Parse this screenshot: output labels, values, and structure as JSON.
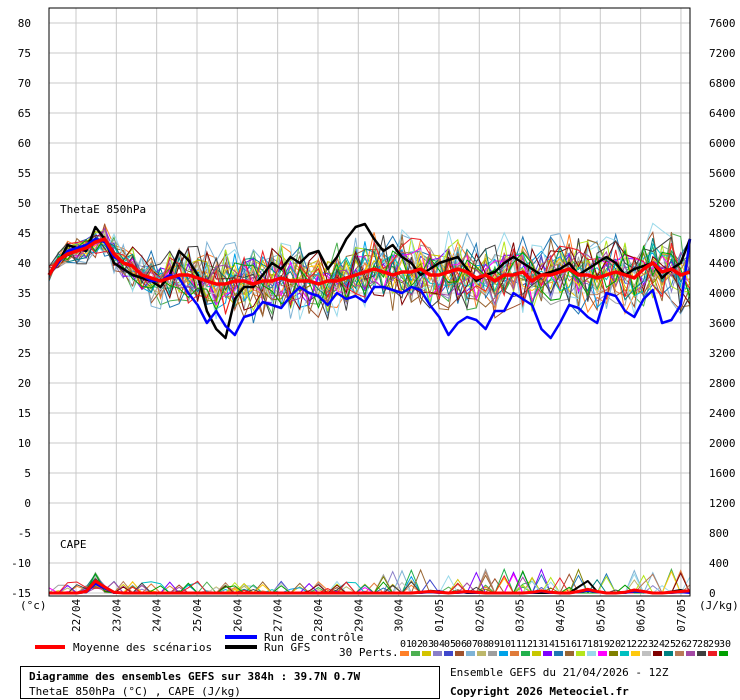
{
  "chart_data": {
    "type": "line",
    "title": "Diagramme des ensembles GEFS sur 384h : 39.7N 0.7W",
    "subtitle": "ThetaE 850hPa (°C) , CAPE (J/kg)",
    "ensemble_info": "Ensemble GEFS du 21/04/2026 - 12Z",
    "copyright": "Copyright 2026 Meteociel.fr",
    "panel_labels": {
      "thetae": "ThetaE 850hPa",
      "cape": "CAPE"
    },
    "left_axis": {
      "unit": "(°c)",
      "ticks": [
        80,
        75,
        70,
        65,
        60,
        55,
        50,
        45,
        40,
        35,
        30,
        25,
        20,
        15,
        10,
        5,
        0,
        -5,
        -10,
        -15
      ],
      "range": [
        -15,
        80
      ]
    },
    "right_axis": {
      "unit": "(J/kg)",
      "ticks": [
        7600,
        7200,
        6800,
        6400,
        6000,
        5600,
        5200,
        4800,
        4400,
        4000,
        3600,
        3200,
        2800,
        2400,
        2000,
        1600,
        1200,
        800,
        400,
        0
      ],
      "range": [
        0,
        7600
      ]
    },
    "x_ticks": [
      "22/04",
      "23/04",
      "24/04",
      "25/04",
      "26/04",
      "27/04",
      "28/04",
      "29/04",
      "30/04",
      "01/05",
      "02/05",
      "03/05",
      "04/05",
      "05/05",
      "06/05",
      "07/05"
    ],
    "legend": {
      "mean": "Moyenne des scénarios",
      "control": "Run de contrôle",
      "gfs": "Run GFS",
      "perts": "30 Perts.",
      "pert_ids": [
        "01",
        "02",
        "03",
        "04",
        "05",
        "06",
        "07",
        "08",
        "09",
        "10",
        "11",
        "12",
        "13",
        "14",
        "15",
        "16",
        "17",
        "18",
        "19",
        "20",
        "21",
        "22",
        "23",
        "24",
        "25",
        "26",
        "27",
        "28",
        "29",
        "30"
      ]
    },
    "colors": {
      "mean": "#ff0000",
      "control": "#0000ff",
      "gfs": "#000000",
      "perts": [
        "#ff7f27",
        "#4caf50",
        "#d4c400",
        "#8a7fc8",
        "#3f48cc",
        "#a0522d",
        "#7fb3d5",
        "#bdb76b",
        "#9e9e9e",
        "#00a2e8",
        "#e07b39",
        "#22b14c",
        "#c8c800",
        "#7f00ff",
        "#1f77b4",
        "#996633",
        "#b5e61d",
        "#99d9ea",
        "#ff00ff",
        "#808000",
        "#00c0c0",
        "#ffc90e",
        "#c0c0c0",
        "#800000",
        "#008080",
        "#b97a57",
        "#a349a4",
        "#404040",
        "#ed1c24",
        "#00a000"
      ]
    },
    "mean_thetae": [
      38,
      40.5,
      41.5,
      42,
      42.5,
      43.5,
      44,
      41.5,
      40,
      39.5,
      38,
      37.5,
      37,
      37.5,
      38,
      38,
      37.5,
      37,
      36.5,
      36.5,
      37,
      37,
      36.5,
      37,
      37,
      37.5,
      37,
      37,
      37,
      36.5,
      37,
      37,
      37.5,
      38,
      38.5,
      39,
      38.5,
      38,
      38.5,
      38.5,
      39,
      38,
      38,
      38.5,
      39,
      38.5,
      37.5,
      38,
      37,
      38,
      38,
      38.5,
      37,
      38,
      38,
      38.5,
      39,
      38,
      38,
      37.5,
      38,
      38.5,
      38,
      37.5,
      39,
      40,
      38.5,
      39,
      38,
      38.5
    ],
    "control_thetae": [
      38,
      40,
      42,
      42.5,
      43,
      44,
      43.5,
      41,
      40,
      39.5,
      38,
      37,
      37,
      38,
      37.5,
      35,
      33,
      30,
      32,
      29.5,
      28,
      31,
      31.5,
      33.5,
      33,
      32.5,
      34.5,
      36,
      35,
      34.5,
      33,
      35,
      34,
      34.5,
      33.5,
      36,
      36,
      35.5,
      35,
      36,
      35.5,
      33,
      31,
      28,
      30,
      31,
      30.5,
      29,
      32,
      32,
      35,
      34,
      33,
      29,
      27.5,
      30,
      33,
      32.5,
      31,
      30,
      35,
      34.5,
      32,
      31,
      34,
      35.5,
      30,
      30.5,
      33,
      44
    ],
    "gfs_thetae": [
      38,
      40,
      43,
      42.5,
      42,
      46,
      44,
      40,
      39,
      38,
      37.5,
      37,
      36,
      38,
      42,
      40.5,
      38,
      32,
      29,
      27.5,
      34,
      36,
      36,
      38,
      40,
      39,
      41,
      40,
      41.5,
      42,
      39,
      41,
      44,
      46,
      46.5,
      44,
      42,
      43,
      41,
      40,
      38,
      39,
      40,
      40.5,
      41,
      39,
      37,
      38,
      38.5,
      40,
      41,
      40,
      39,
      38,
      38.5,
      39,
      40,
      38,
      39,
      40,
      41,
      40,
      38,
      39,
      39.5,
      40,
      37.5,
      39,
      40,
      44
    ],
    "mean_cape": [
      0,
      0,
      0,
      0,
      20,
      160,
      80,
      10,
      0,
      0,
      0,
      0,
      0,
      0,
      0,
      0,
      0,
      0,
      0,
      0,
      0,
      0,
      0,
      0,
      0,
      0,
      0,
      0,
      0,
      0,
      0,
      0,
      0,
      0,
      0,
      0,
      0,
      0,
      0,
      0,
      10,
      20,
      10,
      0,
      10,
      20,
      10,
      0,
      0,
      0,
      0,
      0,
      10,
      30,
      10,
      0,
      0,
      20,
      50,
      20,
      0,
      0,
      10,
      40,
      20,
      0,
      0,
      10,
      20,
      30
    ],
    "control_cape": [
      0,
      0,
      0,
      0,
      10,
      120,
      60,
      0,
      0,
      0,
      0,
      0,
      0,
      0,
      0,
      0,
      0,
      0,
      0,
      0,
      0,
      0,
      0,
      0,
      0,
      0,
      0,
      0,
      0,
      0,
      0,
      0,
      0,
      0,
      0,
      0,
      0,
      0,
      0,
      0,
      0,
      10,
      0,
      0,
      0,
      10,
      0,
      0,
      0,
      0,
      0,
      0,
      0,
      20,
      0,
      0,
      0,
      10,
      30,
      10,
      0,
      0,
      0,
      20,
      10,
      0,
      0,
      0,
      10,
      0
    ],
    "gfs_cape": [
      0,
      0,
      0,
      0,
      10,
      140,
      70,
      0,
      0,
      0,
      0,
      0,
      0,
      0,
      0,
      0,
      0,
      0,
      0,
      0,
      0,
      0,
      0,
      0,
      0,
      0,
      0,
      0,
      0,
      0,
      0,
      0,
      0,
      0,
      0,
      0,
      0,
      0,
      0,
      0,
      0,
      30,
      20,
      0,
      20,
      0,
      0,
      0,
      0,
      0,
      0,
      0,
      0,
      0,
      0,
      0,
      0,
      80,
      160,
      20,
      0,
      0,
      0,
      40,
      20,
      0,
      0,
      20,
      40,
      10
    ]
  }
}
